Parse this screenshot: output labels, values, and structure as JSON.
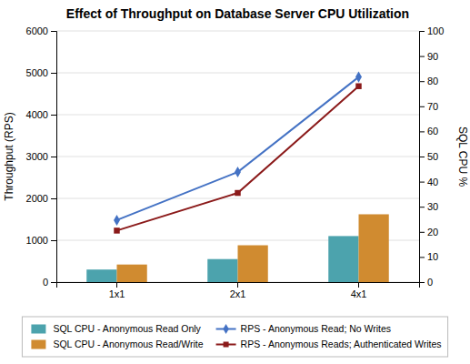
{
  "chart_data": {
    "type": "bar",
    "title": "Effect of Throughput on Database Server CPU Utilization",
    "categories": [
      "1x1",
      "2x1",
      "4x1"
    ],
    "series": [
      {
        "name": "SQL CPU - Anonymous Read Only",
        "type": "bar",
        "color": "#4CA3AD",
        "values": [
          300,
          550,
          1100
        ]
      },
      {
        "name": "SQL CPU - Anonymous Read/Write",
        "type": "bar",
        "color": "#D08B30",
        "values": [
          420,
          880,
          1620
        ]
      },
      {
        "name": "RPS - Anonymous Read; No Writes",
        "type": "line",
        "color": "#4472C4",
        "marker": "diamond",
        "values": [
          1480,
          2630,
          4900
        ]
      },
      {
        "name": "RPS - Anonymous Reads; Authenticated Writes",
        "type": "line",
        "color": "#8B1A1A",
        "marker": "square",
        "values": [
          1230,
          2130,
          4680
        ]
      }
    ],
    "ylabel": "Throughput (RPS)",
    "y2label": "SQL CPU %",
    "ylim": [
      0,
      6000
    ],
    "yticks": [
      0,
      1000,
      2000,
      3000,
      4000,
      5000,
      6000
    ],
    "y2lim": [
      0,
      100
    ],
    "y2ticks": [
      0,
      10,
      20,
      30,
      40,
      50,
      60,
      70,
      80,
      90,
      100
    ],
    "grid": true
  }
}
